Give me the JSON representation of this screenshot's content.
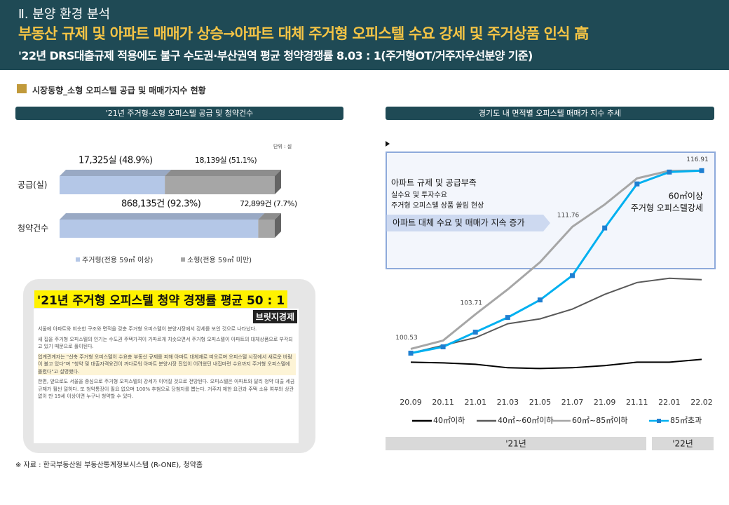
{
  "header": {
    "section": "Ⅱ. 분양 환경 분석",
    "title": "부동산 규제 및 아파트 매매가 상승→아파트 대체 주거형 오피스텔 수요 강세 및 주거상품 인식 高",
    "subtitle": "'22년 DRS대출규제 적용에도 불구 수도권·부산권역 평균 청약경쟁률 8.03 : 1(주거형OT/거주자우선분양 기준)"
  },
  "section_heading": "시장동향_소형 오피스텔 공급 및 매매가지수 현황",
  "chart_data": [
    {
      "type": "bar",
      "orientation": "horizontal",
      "stacked": true,
      "title": "'21년 주거형-소형 오피스텔 공급 및 청약건수",
      "unit": "단위 : 실",
      "categories": [
        "공급(실)",
        "청약건수"
      ],
      "series": [
        {
          "name": "주거형(전용 59㎡ 이상)",
          "color": "#b4c7e7",
          "values": [
            48.9,
            92.3
          ],
          "value_labels": [
            "17,325실 (48.9%)",
            "868,135건 (92.3%)"
          ]
        },
        {
          "name": "소형(전용 59㎡ 미만)",
          "color": "#a6a6a6",
          "values": [
            51.1,
            7.7
          ],
          "value_labels": [
            "18,139실 (51.1%)",
            "72,899건 (7.7%)"
          ]
        }
      ],
      "xlim": [
        0,
        100
      ]
    },
    {
      "type": "line",
      "title": "경기도 내 면적별 오피스텔 매매가 지수 추세",
      "categories": [
        "20.09",
        "20.11",
        "21.01",
        "21.03",
        "21.05",
        "21.07",
        "21.09",
        "21.11",
        "22.01",
        "22.02"
      ],
      "series": [
        {
          "name": "40㎡이하",
          "color": "#000000",
          "values": [
            99.31,
            99.25,
            99.12,
            98.8,
            98.73,
            98.8,
            99.0,
            99.31,
            99.31,
            99.57
          ]
        },
        {
          "name": "40㎡~60㎡이하",
          "color": "#595959",
          "values": [
            100.14,
            100.85,
            101.56,
            102.84,
            103.29,
            104.19,
            105.54,
            106.63,
            107.02,
            106.89
          ]
        },
        {
          "name": "60㎡~85㎡이하",
          "color": "#a6a6a6",
          "values": [
            100.53,
            101.3,
            103.71,
            106.0,
            108.5,
            111.76,
            113.8,
            116.2,
            116.9,
            116.91
          ],
          "value_labels": [
            "100.53",
            null,
            "103.71",
            null,
            null,
            "111.76",
            null,
            null,
            null,
            "116.91"
          ]
        },
        {
          "name": "85㎡초과",
          "color": "#00b0f0",
          "marker": "square",
          "values": [
            100.14,
            100.72,
            102.07,
            103.42,
            105.03,
            107.27,
            111.64,
            115.69,
            116.78,
            116.91
          ]
        }
      ],
      "ylim": [
        96.5,
        119.7
      ],
      "annotations": {
        "lines": [
          "아파트 규제 및 공급부족",
          "실수요 및 투자수요",
          "주거형 오피스텔 상품 쏠림 현상"
        ],
        "banner": "아파트 대체 수요 및 매매가 지속 증가",
        "right": [
          "60㎡이상",
          "주거형 오피스텔강세"
        ]
      },
      "periods": [
        "'21년",
        "'22년"
      ]
    }
  ],
  "news": {
    "headline": "'21년 주거형 오피스텔 청약 경쟁률 평균 50 : 1",
    "source": "브릿지경제",
    "paragraphs": [
      "서울에 아파트와 비슷한 구조와 면적을 갖춘 주거형 오피스텔이 분양시장에서 강세를 보인 것으로 나타났다.",
      "새 집을 주거형 오피스텔의 인기는 수도권 주택가격이 가파르게 치솟으면서 주거형 오피스텔이 아파트의 대체상품으로 부각되고 있기 때문으로 풀이된다.",
      "업계관계자는 \"신축 주거형 오피스텔이 수요층 부동산 규제를 피해 아파트 대체재로 떠오르며 오피스텔 시장에서 새로운 바람이 불고 있다\"며 \"청약 및 대출자격요건이 까다로워 아파트 분양시장 진입이 어려웠던 내집마련 수요까지 주거형 오피스텔에 몰렸다\"고 설명했다.",
      "한편, 앞으로도 서울을 중심으로 주거형 오피스텔의 강세가 이어질 것으로 전망된다. 오피스텔은 아파트와 달리 청약 대출 세금 규제가 훨씬 덜하다. 또 청약통장이 필요 없으며 100% 추첨으로 당첨자를 뽑는다. 거주지 제한 요건과 주택 소유 여부와 상관없이 만 19세 이상이면 누구나 청약할 수 있다."
    ]
  },
  "footnote": "※ 자료 : 한국부동산원 부동산통계정보시스템 (R-ONE), 청약홈"
}
